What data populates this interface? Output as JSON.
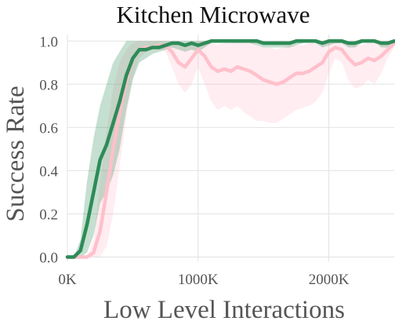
{
  "chart_data": {
    "type": "line",
    "title": "Kitchen Microwave",
    "xlabel": "Low Level Interactions",
    "ylabel": "Success Rate",
    "xlim": [
      0,
      2500000
    ],
    "ylim": [
      -0.02,
      1.03
    ],
    "grid": true,
    "x_ticks": [
      {
        "value": 0,
        "label": "0K"
      },
      {
        "value": 1000000,
        "label": "1000K"
      },
      {
        "value": 2000000,
        "label": "2000K"
      }
    ],
    "y_ticks": [
      {
        "value": 0.0,
        "label": "0.0"
      },
      {
        "value": 0.2,
        "label": "0.2"
      },
      {
        "value": 0.4,
        "label": "0.4"
      },
      {
        "value": 0.6,
        "label": "0.6"
      },
      {
        "value": 0.8,
        "label": "0.8"
      },
      {
        "value": 1.0,
        "label": "1.0"
      }
    ],
    "series": [
      {
        "color": "#ffc0cb",
        "band_color": "#ffc0cb",
        "x": [
          0,
          50000,
          100000,
          150000,
          200000,
          250000,
          300000,
          350000,
          400000,
          450000,
          500000,
          550000,
          600000,
          650000,
          700000,
          750000,
          800000,
          850000,
          900000,
          950000,
          1000000,
          1050000,
          1100000,
          1150000,
          1200000,
          1250000,
          1300000,
          1350000,
          1400000,
          1450000,
          1500000,
          1550000,
          1600000,
          1650000,
          1700000,
          1750000,
          1800000,
          1850000,
          1900000,
          1950000,
          2000000,
          2050000,
          2100000,
          2150000,
          2200000,
          2250000,
          2300000,
          2350000,
          2400000,
          2450000,
          2500000
        ],
        "y": [
          0.0,
          0.0,
          0.0,
          0.0,
          0.02,
          0.12,
          0.3,
          0.5,
          0.67,
          0.82,
          0.92,
          0.96,
          0.97,
          0.97,
          0.98,
          0.98,
          0.95,
          0.9,
          0.88,
          0.92,
          0.96,
          0.93,
          0.88,
          0.86,
          0.87,
          0.86,
          0.88,
          0.87,
          0.86,
          0.84,
          0.82,
          0.81,
          0.8,
          0.81,
          0.83,
          0.85,
          0.85,
          0.86,
          0.88,
          0.9,
          0.95,
          0.97,
          0.96,
          0.92,
          0.89,
          0.9,
          0.92,
          0.91,
          0.93,
          0.96,
          0.99
        ],
        "lower": [
          0.0,
          0.0,
          0.0,
          0.0,
          0.0,
          0.0,
          0.05,
          0.2,
          0.42,
          0.65,
          0.83,
          0.92,
          0.95,
          0.96,
          0.96,
          0.95,
          0.88,
          0.8,
          0.76,
          0.8,
          0.88,
          0.8,
          0.72,
          0.68,
          0.7,
          0.68,
          0.7,
          0.67,
          0.65,
          0.63,
          0.63,
          0.62,
          0.62,
          0.64,
          0.66,
          0.68,
          0.69,
          0.7,
          0.72,
          0.76,
          0.85,
          0.92,
          0.9,
          0.82,
          0.78,
          0.79,
          0.82,
          0.8,
          0.85,
          0.92,
          0.97
        ],
        "upper": [
          0.0,
          0.0,
          0.0,
          0.0,
          0.08,
          0.35,
          0.58,
          0.78,
          0.9,
          0.96,
          0.99,
          1.0,
          1.0,
          1.0,
          1.0,
          1.0,
          1.0,
          1.0,
          0.99,
          1.0,
          1.0,
          1.0,
          0.99,
          0.98,
          0.99,
          0.99,
          1.0,
          1.0,
          1.0,
          0.98,
          0.97,
          0.97,
          0.96,
          0.97,
          0.98,
          0.98,
          0.98,
          0.99,
          0.99,
          1.0,
          1.0,
          1.0,
          1.0,
          0.99,
          0.98,
          0.98,
          0.99,
          0.99,
          1.0,
          1.0,
          1.0
        ]
      },
      {
        "color": "#2e8b57",
        "band_color": "#2e8b57",
        "x": [
          0,
          50000,
          100000,
          150000,
          200000,
          250000,
          300000,
          350000,
          400000,
          450000,
          500000,
          550000,
          600000,
          650000,
          700000,
          750000,
          800000,
          850000,
          900000,
          950000,
          1000000,
          1050000,
          1100000,
          1150000,
          1200000,
          1250000,
          1300000,
          1350000,
          1400000,
          1450000,
          1500000,
          1550000,
          1600000,
          1650000,
          1700000,
          1750000,
          1800000,
          1850000,
          1900000,
          1950000,
          2000000,
          2050000,
          2100000,
          2150000,
          2200000,
          2250000,
          2300000,
          2350000,
          2400000,
          2450000,
          2500000
        ],
        "y": [
          0.0,
          0.0,
          0.03,
          0.15,
          0.3,
          0.45,
          0.52,
          0.62,
          0.72,
          0.84,
          0.92,
          0.96,
          0.96,
          0.97,
          0.97,
          0.98,
          0.99,
          0.99,
          0.98,
          0.99,
          0.98,
          0.99,
          1.0,
          1.0,
          1.0,
          1.0,
          1.0,
          1.0,
          1.0,
          1.0,
          0.99,
          0.99,
          0.99,
          0.99,
          0.99,
          1.0,
          1.0,
          1.0,
          1.0,
          0.99,
          1.0,
          1.0,
          1.0,
          0.99,
          0.99,
          1.0,
          1.0,
          1.0,
          0.99,
          0.99,
          1.0
        ],
        "lower": [
          0.0,
          0.0,
          0.0,
          0.02,
          0.1,
          0.25,
          0.3,
          0.38,
          0.5,
          0.68,
          0.82,
          0.9,
          0.92,
          0.94,
          0.95,
          0.96,
          0.97,
          0.96,
          0.95,
          0.96,
          0.95,
          0.97,
          0.99,
          1.0,
          1.0,
          1.0,
          1.0,
          1.0,
          0.99,
          0.98,
          0.97,
          0.97,
          0.97,
          0.97,
          0.97,
          0.98,
          0.99,
          1.0,
          0.99,
          0.97,
          0.98,
          0.99,
          0.99,
          0.97,
          0.97,
          0.99,
          1.0,
          1.0,
          0.97,
          0.97,
          0.99
        ],
        "upper": [
          0.0,
          0.0,
          0.08,
          0.35,
          0.55,
          0.7,
          0.8,
          0.9,
          0.95,
          1.0,
          1.0,
          1.0,
          1.0,
          1.0,
          1.0,
          1.0,
          1.0,
          1.0,
          1.0,
          1.0,
          1.0,
          1.0,
          1.0,
          1.0,
          1.0,
          1.0,
          1.0,
          1.0,
          1.0,
          1.0,
          1.0,
          1.0,
          1.0,
          1.0,
          1.0,
          1.0,
          1.0,
          1.0,
          1.0,
          1.0,
          1.0,
          1.0,
          1.0,
          1.0,
          1.0,
          1.0,
          1.0,
          1.0,
          1.0,
          1.0,
          1.0
        ]
      }
    ]
  }
}
